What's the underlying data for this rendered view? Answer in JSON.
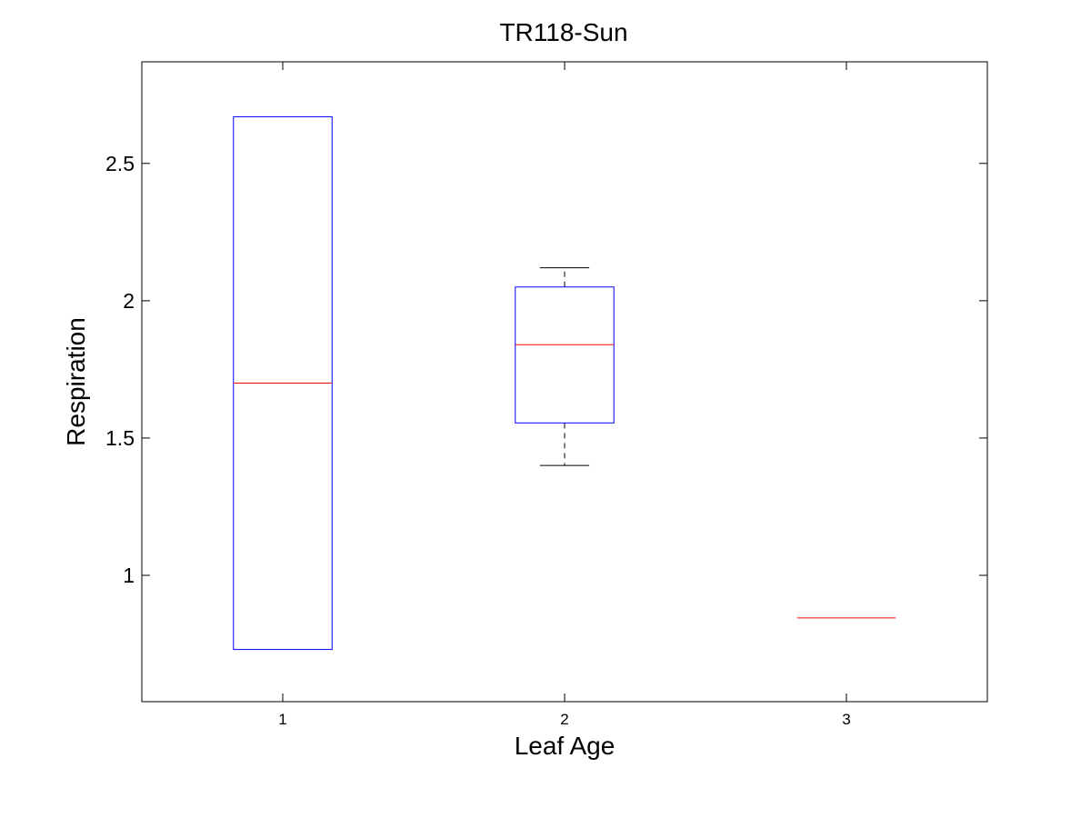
{
  "chart_data": {
    "type": "boxplot",
    "title": "TR118-Sun",
    "xlabel": "Leaf Age",
    "ylabel": "Respiration",
    "categories": [
      "1",
      "2",
      "3"
    ],
    "xlim": [
      0.5,
      3.5
    ],
    "ylim": [
      0.54,
      2.87
    ],
    "yticks": [
      1,
      1.5,
      2,
      2.5
    ],
    "ytick_labels": [
      "1",
      "1.5",
      "2",
      "2.5"
    ],
    "boxes": [
      {
        "category": "1",
        "whisker_low": 0.73,
        "q1": 0.73,
        "median": 1.7,
        "q3": 2.67,
        "whisker_high": 2.67
      },
      {
        "category": "2",
        "whisker_low": 1.4,
        "q1": 1.555,
        "median": 1.84,
        "q3": 2.05,
        "whisker_high": 2.12
      },
      {
        "category": "3",
        "whisker_low": 0.845,
        "q1": 0.845,
        "median": 0.845,
        "q3": 0.845,
        "whisker_high": 0.845
      }
    ],
    "grid": false,
    "legend": "none",
    "colors": {
      "box": "#0000ff",
      "median": "#ff0000",
      "whisker": "#000000",
      "axes": "#000000"
    }
  }
}
